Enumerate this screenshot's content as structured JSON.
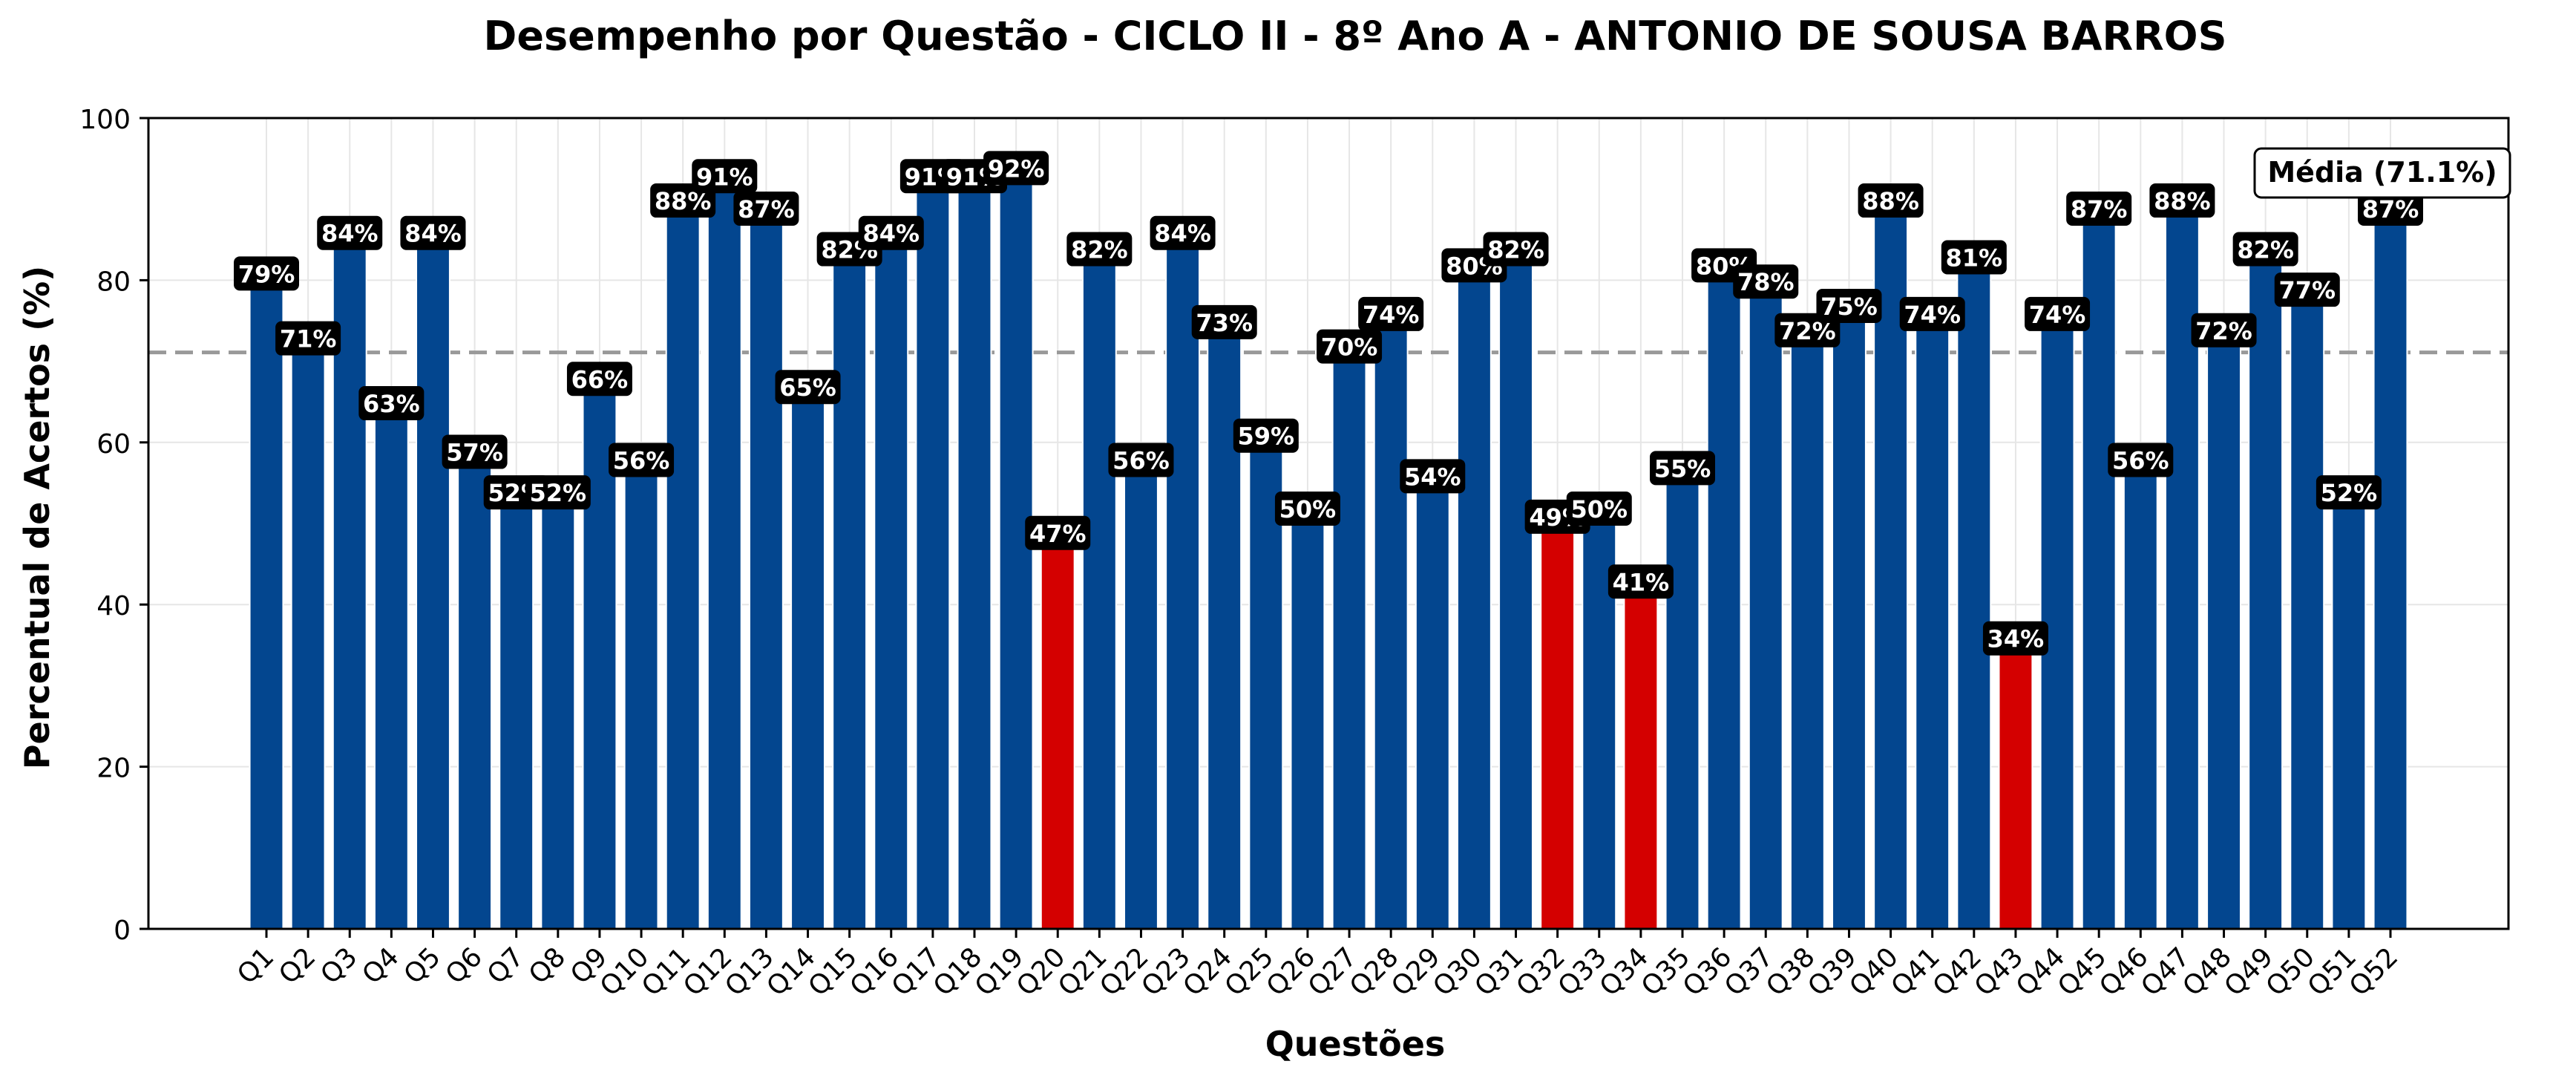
{
  "chart_data": {
    "type": "bar",
    "title": "Desempenho por Questão - CICLO II - 8º Ano A - ANTONIO DE SOUSA BARROS",
    "xlabel": "Questões",
    "ylabel": "Percentual de Acertos (%)",
    "ylim": [
      0,
      100
    ],
    "yticks": [
      0,
      20,
      40,
      60,
      80,
      100
    ],
    "grid": true,
    "categories": [
      "Q1",
      "Q2",
      "Q3",
      "Q4",
      "Q5",
      "Q6",
      "Q7",
      "Q8",
      "Q9",
      "Q10",
      "Q11",
      "Q12",
      "Q13",
      "Q14",
      "Q15",
      "Q16",
      "Q17",
      "Q18",
      "Q19",
      "Q20",
      "Q21",
      "Q22",
      "Q23",
      "Q24",
      "Q25",
      "Q26",
      "Q27",
      "Q28",
      "Q29",
      "Q30",
      "Q31",
      "Q32",
      "Q33",
      "Q34",
      "Q35",
      "Q36",
      "Q37",
      "Q38",
      "Q39",
      "Q40",
      "Q41",
      "Q42",
      "Q43",
      "Q44",
      "Q45",
      "Q46",
      "Q47",
      "Q48",
      "Q49",
      "Q50",
      "Q51",
      "Q52"
    ],
    "values": [
      79,
      71,
      84,
      63,
      84,
      57,
      52,
      52,
      66,
      56,
      88,
      91,
      87,
      65,
      82,
      84,
      91,
      91,
      92,
      47,
      82,
      56,
      84,
      73,
      59,
      50,
      70,
      74,
      54,
      80,
      82,
      49,
      50,
      41,
      55,
      80,
      78,
      72,
      75,
      88,
      74,
      81,
      34,
      74,
      87,
      56,
      88,
      72,
      82,
      77,
      52,
      87
    ],
    "data_labels": [
      "79%",
      "71%",
      "84%",
      "63%",
      "84%",
      "57%",
      "52%",
      "52%",
      "66%",
      "56%",
      "88%",
      "91%",
      "87%",
      "65%",
      "82%",
      "84%",
      "91%",
      "91%",
      "92%",
      "47%",
      "82%",
      "56%",
      "84%",
      "73%",
      "59%",
      "50%",
      "70%",
      "74%",
      "54%",
      "80%",
      "82%",
      "49%",
      "50%",
      "41%",
      "55%",
      "80%",
      "78%",
      "72%",
      "75%",
      "88%",
      "74%",
      "81%",
      "34%",
      "74%",
      "87%",
      "56%",
      "88%",
      "72%",
      "82%",
      "77%",
      "52%",
      "87%"
    ],
    "colors": {
      "normal": "#03468f",
      "highlight": "#d40000",
      "label_bg": "#000000",
      "label_text": "#ffffff",
      "mean_line": "#999999",
      "grid": "#e6e6e6"
    },
    "highlight_threshold": 50,
    "mean": {
      "value": 71.1,
      "label": "Média (71.1%)",
      "position": "top-right"
    }
  }
}
